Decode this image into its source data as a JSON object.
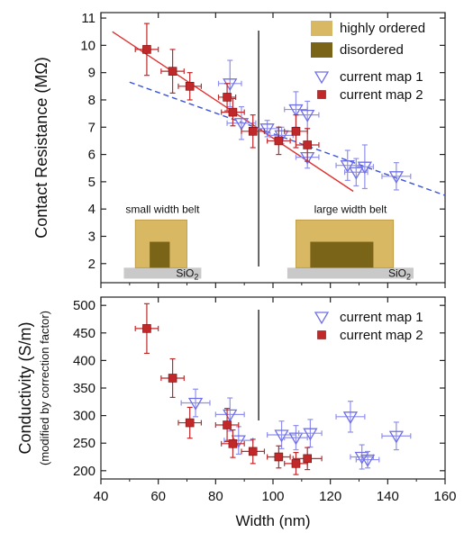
{
  "chart_data": [
    {
      "type": "scatter",
      "xlabel": "Width (nm)",
      "ylabel": "Contact Resistance (MΩ)",
      "xlim": [
        40,
        160
      ],
      "ylim": [
        1.3,
        11.2
      ],
      "xticks": [
        40,
        60,
        80,
        100,
        120,
        140,
        160
      ],
      "yticks": [
        2,
        3,
        4,
        5,
        6,
        7,
        8,
        9,
        10,
        11
      ],
      "grid": false,
      "divider_x": 95,
      "area_legend": [
        {
          "label": "highly ordered",
          "color": "#d9b863"
        },
        {
          "label": "disordered",
          "color": "#7a6418"
        }
      ],
      "legend": [
        "current map 1",
        "current map 2"
      ],
      "series": [
        {
          "name": "current map 1",
          "marker": "open-triangle-down",
          "color": "#6f6fe8",
          "points": [
            {
              "x": 85,
              "y": 8.6,
              "xerr": 4,
              "yerr": 0.85
            },
            {
              "x": 89,
              "y": 7.15,
              "xerr": 5,
              "yerr": 0.6
            },
            {
              "x": 98,
              "y": 6.95,
              "xerr": 4,
              "yerr": 0.3
            },
            {
              "x": 103,
              "y": 6.7,
              "xerr": 4,
              "yerr": 0.3
            },
            {
              "x": 108,
              "y": 7.65,
              "xerr": 4,
              "yerr": 0.65
            },
            {
              "x": 112,
              "y": 7.45,
              "xerr": 4,
              "yerr": 0.5
            },
            {
              "x": 112,
              "y": 5.9,
              "xerr": 4,
              "yerr": 0.4
            },
            {
              "x": 126,
              "y": 5.6,
              "xerr": 4,
              "yerr": 0.55
            },
            {
              "x": 129,
              "y": 5.35,
              "xerr": 4,
              "yerr": 0.5
            },
            {
              "x": 132,
              "y": 5.55,
              "xerr": 3,
              "yerr": 0.8
            },
            {
              "x": 143,
              "y": 5.2,
              "xerr": 5,
              "yerr": 0.5
            }
          ],
          "fit": {
            "x1": 50,
            "y1": 8.65,
            "x2": 160,
            "y2": 4.5,
            "style": "dashed",
            "color": "#3d55d8"
          }
        },
        {
          "name": "current map 2",
          "marker": "filled-square",
          "color": "#c0282a",
          "points": [
            {
              "x": 56,
              "y": 9.85,
              "xerr": 4,
              "yerr": 0.95
            },
            {
              "x": 65,
              "y": 9.05,
              "xerr": 4,
              "yerr": 0.8
            },
            {
              "x": 71,
              "y": 8.5,
              "xerr": 4,
              "yerr": 0.5
            },
            {
              "x": 84,
              "y": 8.1,
              "xerr": 3,
              "yerr": 0.5
            },
            {
              "x": 86,
              "y": 7.55,
              "xerr": 4,
              "yerr": 0.5
            },
            {
              "x": 93,
              "y": 6.85,
              "xerr": 4,
              "yerr": 0.6
            },
            {
              "x": 102,
              "y": 6.5,
              "xerr": 4,
              "yerr": 0.5
            },
            {
              "x": 108,
              "y": 6.85,
              "xerr": 4,
              "yerr": 0.6
            },
            {
              "x": 112,
              "y": 6.35,
              "xerr": 4,
              "yerr": 0.6
            }
          ],
          "fit": {
            "x1": 44,
            "y1": 10.5,
            "x2": 128,
            "y2": 4.65,
            "style": "solid",
            "color": "#e03030"
          }
        }
      ],
      "insets": [
        {
          "label": "small width belt",
          "substrate": "SiO2",
          "x0": 48,
          "x1": 75,
          "outer": [
            52,
            70
          ],
          "inner": [
            57,
            64
          ],
          "outer_top": 3.6,
          "inner_top": 2.8
        },
        {
          "label": "large width belt",
          "substrate": "SiO2",
          "x0": 105,
          "x1": 149,
          "outer": [
            108,
            142
          ],
          "inner": [
            113,
            135
          ],
          "outer_top": 3.6,
          "inner_top": 2.8
        }
      ]
    },
    {
      "type": "scatter",
      "xlabel": "Width (nm)",
      "ylabel": "Conductivity (S/m)",
      "ylabel_sub": "(modified by correction factor)",
      "xlim": [
        40,
        160
      ],
      "ylim": [
        185,
        515
      ],
      "xticks": [
        40,
        60,
        80,
        100,
        120,
        140,
        160
      ],
      "yticks": [
        200,
        250,
        300,
        350,
        400,
        450,
        500
      ],
      "grid": false,
      "divider_x": 95,
      "legend": [
        "current map 1",
        "current map 2"
      ],
      "series": [
        {
          "name": "current map 1",
          "marker": "open-triangle-down",
          "color": "#6f6fe8",
          "points": [
            {
              "x": 73,
              "y": 323,
              "xerr": 5,
              "yerr": 25
            },
            {
              "x": 85,
              "y": 302,
              "xerr": 5,
              "yerr": 30
            },
            {
              "x": 88,
              "y": 255,
              "xerr": 5,
              "yerr": 25
            },
            {
              "x": 103,
              "y": 265,
              "xerr": 5,
              "yerr": 25
            },
            {
              "x": 108,
              "y": 260,
              "xerr": 4,
              "yerr": 22
            },
            {
              "x": 113,
              "y": 268,
              "xerr": 4,
              "yerr": 25
            },
            {
              "x": 127,
              "y": 298,
              "xerr": 5,
              "yerr": 28
            },
            {
              "x": 131,
              "y": 225,
              "xerr": 4,
              "yerr": 22
            },
            {
              "x": 133,
              "y": 220,
              "xerr": 4,
              "yerr": 15
            },
            {
              "x": 143,
              "y": 263,
              "xerr": 5,
              "yerr": 25
            }
          ]
        },
        {
          "name": "current map 2",
          "marker": "filled-square",
          "color": "#c0282a",
          "points": [
            {
              "x": 56,
              "y": 458,
              "xerr": 4,
              "yerr": 45
            },
            {
              "x": 65,
              "y": 368,
              "xerr": 4,
              "yerr": 35
            },
            {
              "x": 71,
              "y": 287,
              "xerr": 4,
              "yerr": 28
            },
            {
              "x": 84,
              "y": 283,
              "xerr": 4,
              "yerr": 30
            },
            {
              "x": 86,
              "y": 249,
              "xerr": 4,
              "yerr": 25
            },
            {
              "x": 93,
              "y": 235,
              "xerr": 4,
              "yerr": 22
            },
            {
              "x": 102,
              "y": 225,
              "xerr": 4,
              "yerr": 20
            },
            {
              "x": 108,
              "y": 213,
              "xerr": 4,
              "yerr": 20
            },
            {
              "x": 112,
              "y": 222,
              "xerr": 5,
              "yerr": 20
            }
          ]
        }
      ]
    }
  ]
}
